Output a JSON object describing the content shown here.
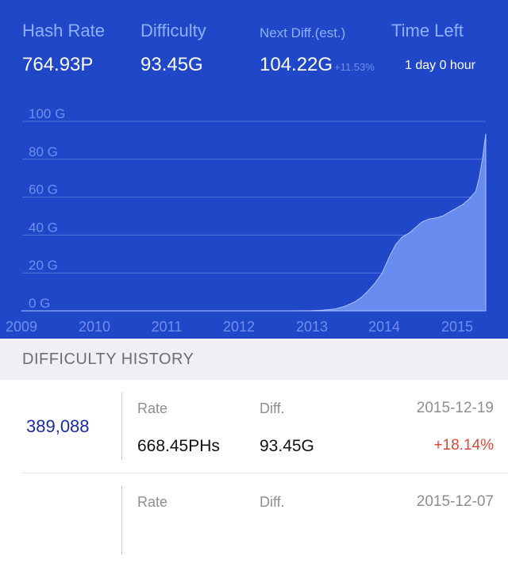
{
  "stats": {
    "hash_rate_label": "Hash Rate",
    "hash_rate_value": "764.93P",
    "difficulty_label": "Difficulty",
    "difficulty_value": "93.45G",
    "next_diff_label": "Next Diff.(est.)",
    "next_diff_value": "104.22G",
    "next_diff_change": "+11.53%",
    "time_left_label": "Time Left",
    "time_left_value": "1 day 0 hour"
  },
  "chart_data": {
    "type": "area",
    "title": "",
    "xlabel": "",
    "ylabel": "",
    "x_ticks": [
      "2009",
      "2010",
      "2011",
      "2012",
      "2013",
      "2014",
      "2015"
    ],
    "y_ticks": [
      "0 G",
      "20 G",
      "40 G",
      "60 G",
      "80 G",
      "100 G"
    ],
    "ylim": [
      0,
      100
    ],
    "xlim": [
      2009,
      2015.95
    ],
    "grid": true,
    "series": [
      {
        "x": [
          2009,
          2010,
          2011,
          2012,
          2012.5,
          2013,
          2013.3,
          2013.5,
          2013.7,
          2013.85,
          2014,
          2014.1,
          2014.2,
          2014.3,
          2014.4,
          2014.5,
          2014.6,
          2014.7,
          2014.8,
          2014.9,
          2015,
          2015.1,
          2015.2,
          2015.3,
          2015.4,
          2015.5,
          2015.6,
          2015.7,
          2015.8,
          2015.85,
          2015.9,
          2015.95
        ],
        "values": [
          0,
          0,
          0,
          0.002,
          0.003,
          0.005,
          0.03,
          0.3,
          1,
          2.5,
          5,
          7.5,
          11,
          15,
          20,
          28,
          35,
          39,
          41,
          44,
          47,
          48.5,
          49,
          50,
          52,
          54,
          56,
          59,
          63,
          70,
          80,
          93.45
        ],
        "color": "#6b8ff0"
      }
    ]
  },
  "history": {
    "title": "DIFFICULTY HISTORY",
    "rows": [
      {
        "block": "389,088",
        "rate_label": "Rate",
        "diff_label": "Diff.",
        "date": "2015-12-19",
        "rate": "668.45PHs",
        "diff": "93.45G",
        "change": "+18.14%"
      },
      {
        "rate_label": "Rate",
        "diff_label": "Diff.",
        "date": "2015-12-07"
      }
    ]
  }
}
